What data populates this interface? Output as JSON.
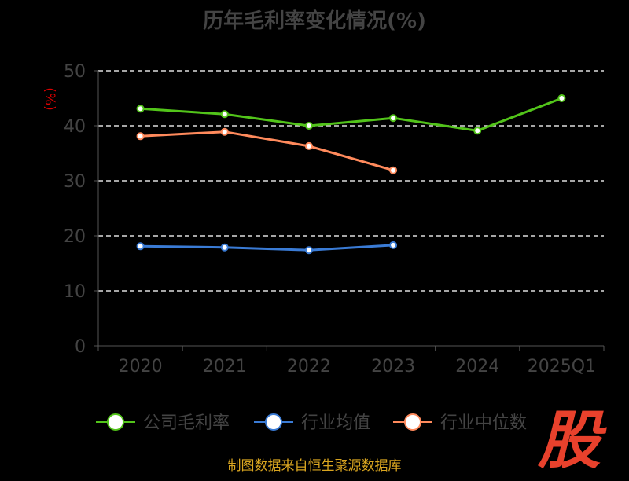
{
  "title": "历年毛利率变化情况(%)",
  "source": "制图数据来自恒生聚源数据库",
  "logo_text": "股",
  "chart_data": {
    "type": "line",
    "title": "历年毛利率变化情况(%)",
    "ylabel": "(%)",
    "xlabel": "",
    "ylim": [
      0,
      50
    ],
    "yticks": [
      0,
      10,
      20,
      30,
      40,
      50
    ],
    "grid": true,
    "legend_position": "bottom",
    "categories": [
      "2020",
      "2021",
      "2022",
      "2023",
      "2024",
      "2025Q1"
    ],
    "series": [
      {
        "name": "公司毛利率",
        "color": "#52c41a",
        "values": [
          43.1,
          42.1,
          40.0,
          41.4,
          39.1,
          45.0
        ]
      },
      {
        "name": "行业均值",
        "color": "#3a7bd5",
        "values": [
          18.1,
          17.9,
          17.4,
          18.3,
          null,
          null
        ]
      },
      {
        "name": "行业中位数",
        "color": "#ff8a5c",
        "values": [
          38.1,
          38.9,
          36.3,
          31.9,
          null,
          null
        ]
      }
    ]
  }
}
